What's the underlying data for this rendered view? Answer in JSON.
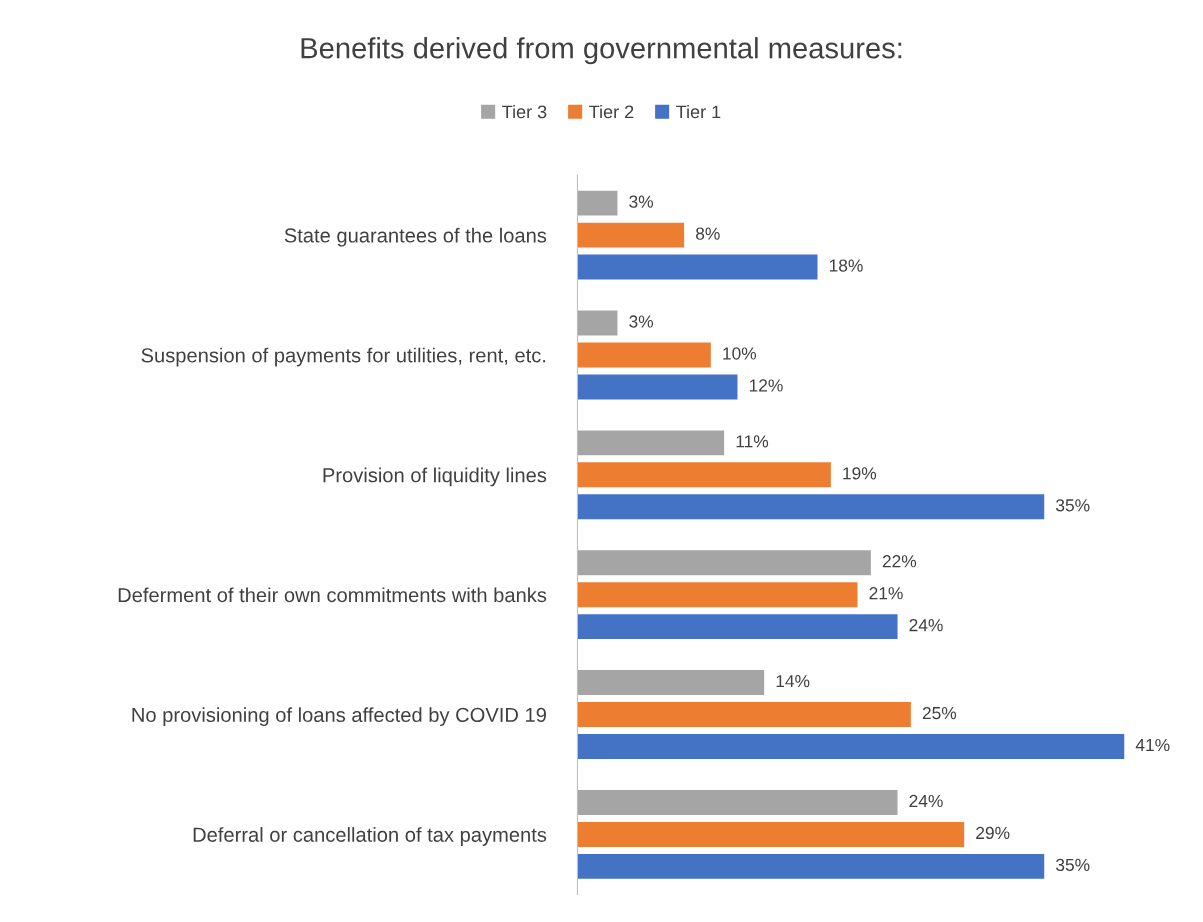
{
  "chart_data": {
    "type": "bar",
    "orientation": "horizontal",
    "title": "Benefits derived from governmental measures:",
    "categories": [
      "State guarantees of the loans",
      "Suspension of payments for utilities, rent, etc.",
      "Provision of liquidity lines",
      "Deferment of their own commitments with banks",
      "No provisioning of loans affected by COVID 19",
      "Deferral or cancellation of tax payments"
    ],
    "series": [
      {
        "name": "Tier 3",
        "color": "#a5a5a5",
        "values": [
          3,
          3,
          11,
          22,
          14,
          24
        ],
        "value_labels": [
          "3%",
          "3%",
          "11%",
          "22%",
          "14%",
          "24%"
        ]
      },
      {
        "name": "Tier 2",
        "color": "#ed7d31",
        "values": [
          8,
          10,
          19,
          21,
          25,
          29
        ],
        "value_labels": [
          "8%",
          "10%",
          "19%",
          "21%",
          "25%",
          "29%"
        ]
      },
      {
        "name": "Tier 1",
        "color": "#4472c4",
        "values": [
          18,
          12,
          35,
          24,
          41,
          35
        ],
        "value_labels": [
          "18%",
          "12%",
          "35%",
          "24%",
          "41%",
          "35%"
        ]
      }
    ],
    "legend": "top",
    "grid": false
  }
}
